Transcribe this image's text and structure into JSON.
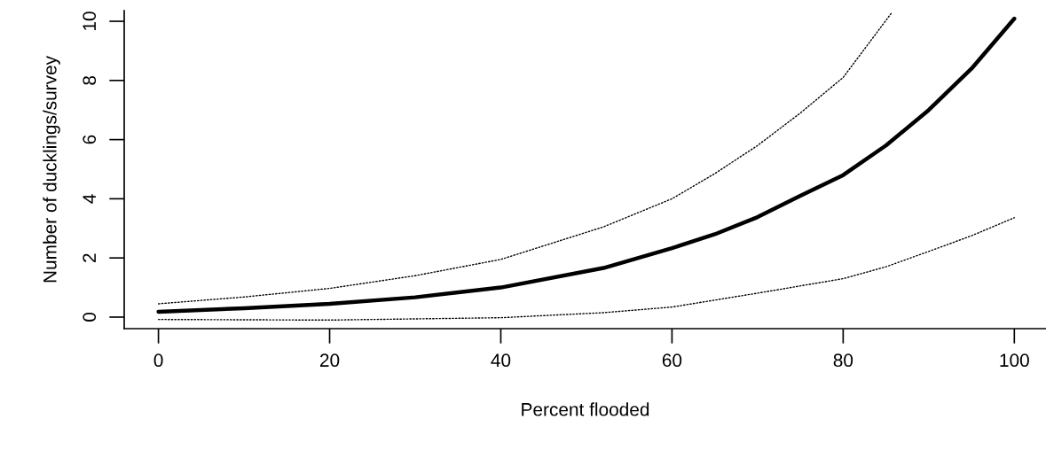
{
  "chart_data": {
    "type": "line",
    "xlabel": "Percent flooded",
    "ylabel": "Number of ducklings/survey",
    "xlim": [
      -4,
      103.7
    ],
    "ylim": [
      -0.39,
      10.36
    ],
    "xticks": [
      0,
      20,
      40,
      60,
      80,
      100
    ],
    "yticks": [
      0,
      2,
      4,
      6,
      8,
      10
    ],
    "grid": false,
    "marker": "none",
    "series": [
      {
        "color": "#000000",
        "line_style": "solid",
        "x": [
          0,
          10,
          20,
          30,
          40,
          52,
          60,
          65,
          70,
          75,
          80,
          85,
          90,
          95,
          100
        ],
        "values": [
          0.18,
          0.3,
          0.45,
          0.67,
          1.0,
          1.66,
          2.33,
          2.8,
          3.38,
          4.1,
          4.8,
          5.8,
          7.0,
          8.4,
          10.09
        ]
      },
      {
        "color": "#000000",
        "line_style": "dotted",
        "x": [
          0,
          10,
          20,
          30,
          40,
          52,
          60,
          65,
          70,
          75,
          80,
          85.7
        ],
        "values": [
          0.45,
          0.68,
          0.97,
          1.4,
          1.95,
          3.05,
          4.0,
          4.85,
          5.8,
          6.9,
          8.1,
          10.3
        ]
      },
      {
        "color": "#000000",
        "line_style": "dotted",
        "x": [
          0,
          20,
          40,
          52,
          60,
          70,
          80,
          85,
          90,
          95,
          100
        ],
        "values": [
          -0.08,
          -0.1,
          -0.02,
          0.15,
          0.34,
          0.81,
          1.3,
          1.7,
          2.22,
          2.75,
          3.36
        ]
      }
    ]
  }
}
